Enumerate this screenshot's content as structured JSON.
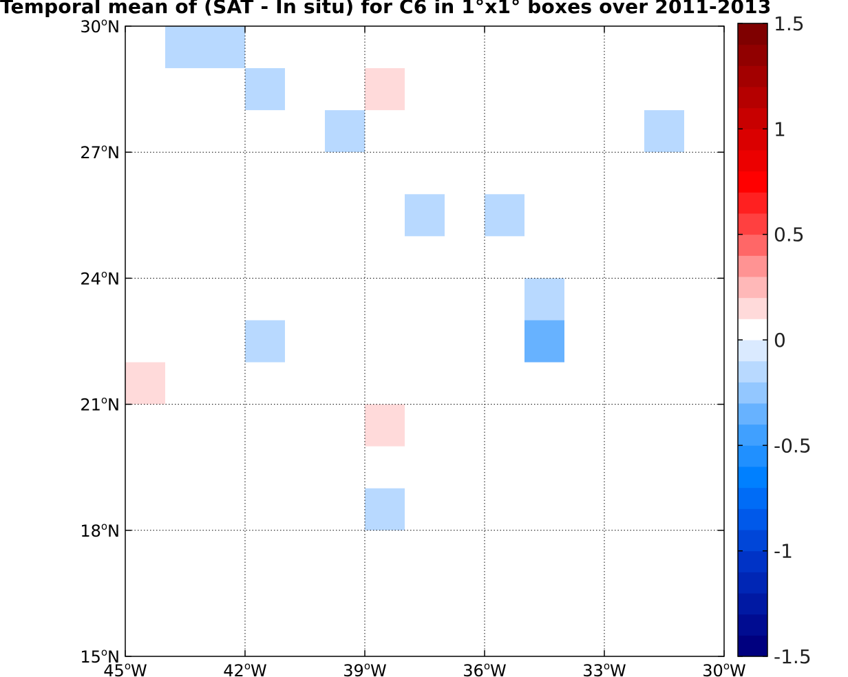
{
  "chart_data": {
    "type": "heatmap",
    "title": "Temporal mean of (SAT - In situ) for C6 in 1°x1° boxes over 2011-2013",
    "xlim": [
      -45,
      -30
    ],
    "ylim": [
      15,
      30
    ],
    "grid": true,
    "x_ticks": [
      {
        "value": -45,
        "label": "45",
        "suffix": "W"
      },
      {
        "value": -42,
        "label": "42",
        "suffix": "W"
      },
      {
        "value": -39,
        "label": "39",
        "suffix": "W"
      },
      {
        "value": -36,
        "label": "36",
        "suffix": "W"
      },
      {
        "value": -33,
        "label": "33",
        "suffix": "W"
      },
      {
        "value": -30,
        "label": "30",
        "suffix": "W"
      }
    ],
    "y_ticks": [
      {
        "value": 30,
        "label": "30",
        "suffix": "N"
      },
      {
        "value": 27,
        "label": "27",
        "suffix": "N"
      },
      {
        "value": 24,
        "label": "24",
        "suffix": "N"
      },
      {
        "value": 21,
        "label": "21",
        "suffix": "N"
      },
      {
        "value": 18,
        "label": "18",
        "suffix": "N"
      },
      {
        "value": 15,
        "label": "15",
        "suffix": "N"
      }
    ],
    "degree_symbol": "o",
    "cells": [
      {
        "lon": -44,
        "lat": 29,
        "value": -0.2
      },
      {
        "lon": -43,
        "lat": 29,
        "value": -0.1
      },
      {
        "lon": -42,
        "lat": 28,
        "value": -0.1
      },
      {
        "lon": -39,
        "lat": 28,
        "value": 0.1
      },
      {
        "lon": -40,
        "lat": 27,
        "value": -0.1
      },
      {
        "lon": -32,
        "lat": 27,
        "value": -0.1
      },
      {
        "lon": -38,
        "lat": 25,
        "value": -0.1
      },
      {
        "lon": -36,
        "lat": 25,
        "value": -0.1
      },
      {
        "lon": -35,
        "lat": 23,
        "value": -0.1
      },
      {
        "lon": -35,
        "lat": 22,
        "value": -0.3
      },
      {
        "lon": -42,
        "lat": 22,
        "value": -0.1
      },
      {
        "lon": -45,
        "lat": 21,
        "value": 0.1
      },
      {
        "lon": -39,
        "lat": 20,
        "value": 0.1
      },
      {
        "lon": -39,
        "lat": 18,
        "value": -0.2
      }
    ],
    "colorbar": {
      "min": -1.5,
      "max": 1.5,
      "ticks": [
        {
          "value": 1.5,
          "label": "1.5"
        },
        {
          "value": 1,
          "label": "1"
        },
        {
          "value": 0.5,
          "label": "0.5"
        },
        {
          "value": 0,
          "label": "0"
        },
        {
          "value": -0.5,
          "label": "-0.5"
        },
        {
          "value": -1,
          "label": "-1"
        },
        {
          "value": -1.5,
          "label": "-1.5"
        }
      ],
      "colors": [
        "#00007f",
        "#000c91",
        "#0019a3",
        "#0026b5",
        "#0033c6",
        "#0046d8",
        "#0059ea",
        "#006cf6",
        "#0080ff",
        "#2090ff",
        "#40a0ff",
        "#67b2ff",
        "#93c7ff",
        "#b8d9ff",
        "#daeaff",
        "#ffffff",
        "#ffdada",
        "#ffb8b8",
        "#ff9393",
        "#ff6767",
        "#ff4040",
        "#ff2020",
        "#ff0000",
        "#ec0000",
        "#da0000",
        "#c80000",
        "#b50000",
        "#a30000",
        "#910000",
        "#7f0000"
      ]
    }
  }
}
